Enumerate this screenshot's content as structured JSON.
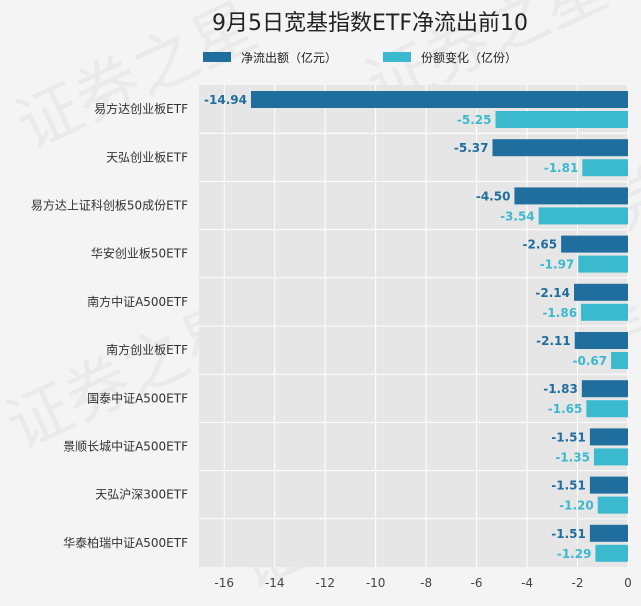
{
  "chart_data": {
    "type": "bar",
    "orientation": "horizontal",
    "title": "9月5日宽基指数ETF净流出前10",
    "categories": [
      "易方达创业板ETF",
      "天弘创业板ETF",
      "易方达上证科创板50成份ETF",
      "华安创业板50ETF",
      "南方中证A500ETF",
      "南方创业板ETF",
      "国泰中证A500ETF",
      "景顺长城中证A500ETF",
      "天弘沪深300ETF",
      "华泰柏瑞中证A500ETF"
    ],
    "series": [
      {
        "name": "净流出额（亿元）",
        "color": "#1f6e9e",
        "values": [
          -14.94,
          -5.37,
          -4.5,
          -2.65,
          -2.14,
          -2.11,
          -1.83,
          -1.51,
          -1.51,
          -1.51
        ],
        "labels": [
          "-14.94",
          "-5.37",
          "-4.50",
          "-2.65",
          "-2.14",
          "-2.11",
          "-1.83",
          "-1.51",
          "-1.51",
          "-1.51"
        ]
      },
      {
        "name": "份额变化（亿份）",
        "color": "#3ab9cf",
        "values": [
          -5.25,
          -1.81,
          -3.54,
          -1.97,
          -1.86,
          -0.67,
          -1.65,
          -1.35,
          -1.2,
          -1.29
        ],
        "labels": [
          "-5.25",
          "-1.81",
          "-3.54",
          "-1.97",
          "-1.86",
          "-0.67",
          "-1.65",
          "-1.35",
          "-1.20",
          "-1.29"
        ]
      }
    ],
    "xlim": [
      -17,
      0
    ],
    "xticks": [
      -16,
      -14,
      -12,
      -10,
      -8,
      -6,
      -4,
      -2,
      0
    ],
    "xtick_labels": [
      "-16",
      "-14",
      "-12",
      "-10",
      "-8",
      "-6",
      "-4",
      "-2",
      "0"
    ],
    "grid": true,
    "legend_position": "top"
  },
  "watermark": "证券之星",
  "colors": {
    "plot_bg": "#e6e6e6",
    "grid": "#ffffff",
    "page_bg": "#f4f4f4"
  }
}
